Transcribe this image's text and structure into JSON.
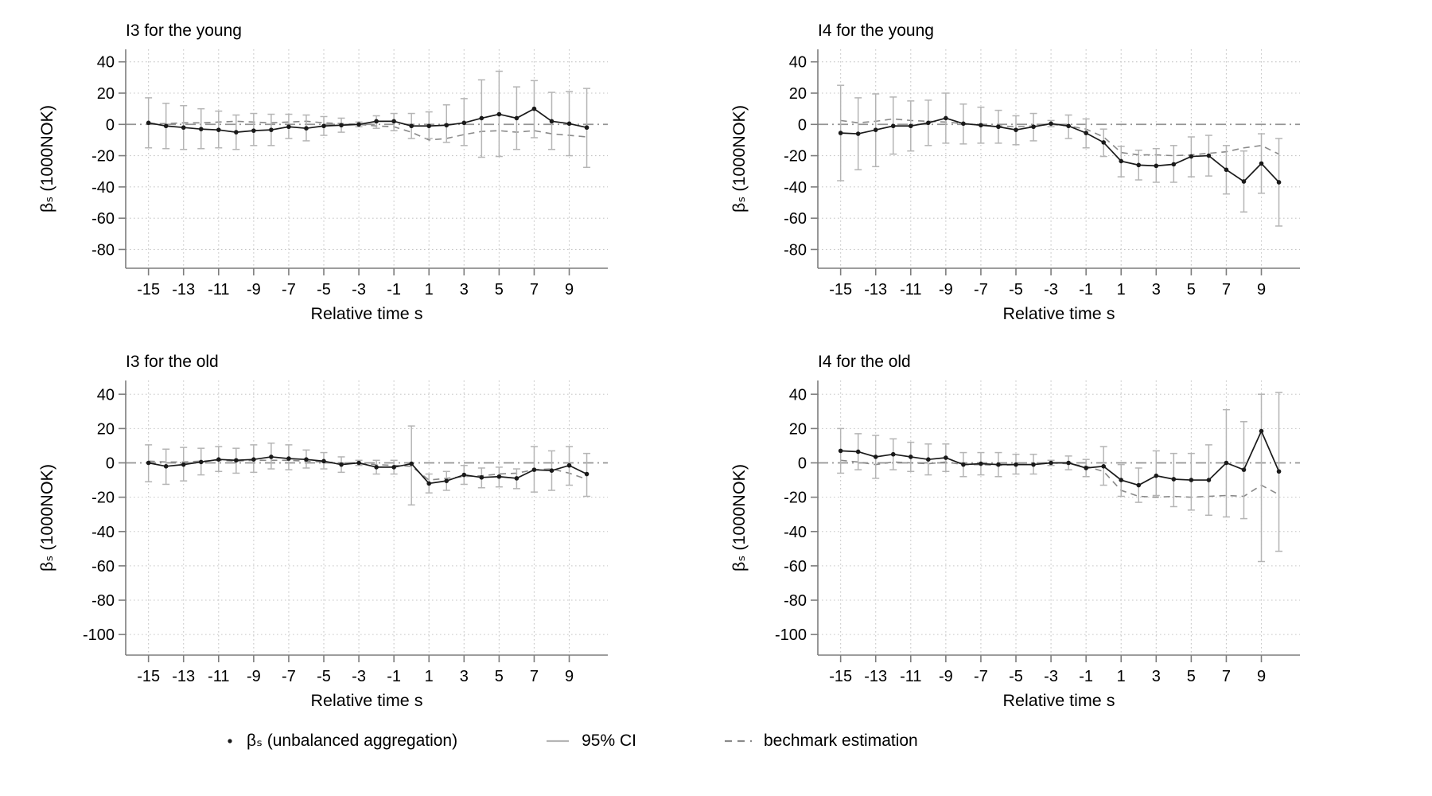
{
  "figure": {
    "xlabel": "Relative time s",
    "ylabel": "βₛ (1000NOK)",
    "legend": [
      {
        "marker": "dot-icon",
        "label": "βₛ (unbalanced aggregation)"
      },
      {
        "marker": "line-icon",
        "label": "95% CI"
      },
      {
        "marker": "dash-icon",
        "label": "bechmark estimation"
      }
    ],
    "colors": {
      "series": "#1a1a1a",
      "ci": "#b5b5b5",
      "benchmark": "#8a8a8a",
      "zero_line": "#959595",
      "grid": "#c6c6c6",
      "spine": "#7d7d7d",
      "text": "#000000",
      "background": "#ffffff"
    }
  },
  "chart_data": [
    {
      "type": "line",
      "title": "I3 for the young",
      "xlabel": "Relative time s",
      "ylabel": "βₛ (1000NOK)",
      "x": [
        -15,
        -14,
        -13,
        -12,
        -11,
        -10,
        -9,
        -8,
        -7,
        -6,
        -5,
        -4,
        -3,
        -2,
        -1,
        0,
        1,
        2,
        3,
        4,
        5,
        6,
        7,
        8,
        9,
        10
      ],
      "xticks": [
        -15,
        -13,
        -11,
        -9,
        -7,
        -5,
        -3,
        -1,
        1,
        3,
        5,
        7,
        9
      ],
      "yticks": [
        40,
        20,
        0,
        -20,
        -40,
        -60,
        -80
      ],
      "ylim": [
        -92,
        48
      ],
      "ref_line_y": 0,
      "legend_position": "bottom",
      "grid": true,
      "series": [
        {
          "name": "beta",
          "values": [
            1,
            -1,
            -2,
            -3,
            -3.5,
            -5,
            -4,
            -3.5,
            -1.5,
            -2.5,
            -1,
            -0.5,
            0,
            2,
            2,
            -1,
            -1,
            -0.5,
            1,
            4,
            6.5,
            4,
            10,
            2,
            0.5,
            -2
          ]
        },
        {
          "name": "ci_high",
          "values": [
            17,
            13.5,
            12,
            10,
            8.5,
            6,
            7,
            6.5,
            6.5,
            6,
            5,
            4,
            1.5,
            5.5,
            7,
            7,
            8,
            12.5,
            16.5,
            28.5,
            34,
            24,
            28,
            20.5,
            21,
            23
          ]
        },
        {
          "name": "ci_low",
          "values": [
            -15,
            -15.5,
            -16,
            -15.5,
            -15,
            -16,
            -13.5,
            -13.5,
            -9,
            -10.5,
            -7,
            -5,
            -1.5,
            -2.5,
            -4,
            -9,
            -9,
            -11.5,
            -13.5,
            -21,
            -20.5,
            -16,
            -8.5,
            -16,
            -20,
            -27.5
          ]
        },
        {
          "name": "benchmark",
          "values": [
            0.5,
            0.5,
            1,
            1,
            1.5,
            2,
            1.5,
            1,
            1.5,
            2,
            1,
            0.5,
            0,
            -1,
            -1.5,
            -5,
            -10,
            -9,
            -6.5,
            -4.5,
            -4,
            -5,
            -4,
            -6,
            -7,
            -8
          ]
        }
      ]
    },
    {
      "type": "line",
      "title": "I4 for the young",
      "xlabel": "Relative time s",
      "ylabel": "βₛ (1000NOK)",
      "x": [
        -15,
        -14,
        -13,
        -12,
        -11,
        -10,
        -9,
        -8,
        -7,
        -6,
        -5,
        -4,
        -3,
        -2,
        -1,
        0,
        1,
        2,
        3,
        4,
        5,
        6,
        7,
        8,
        9,
        10
      ],
      "xticks": [
        -15,
        -13,
        -11,
        -9,
        -7,
        -5,
        -3,
        -1,
        1,
        3,
        5,
        7,
        9
      ],
      "yticks": [
        40,
        20,
        0,
        -20,
        -40,
        -60,
        -80
      ],
      "ylim": [
        -92,
        48
      ],
      "ref_line_y": 0,
      "legend_position": "bottom",
      "grid": true,
      "series": [
        {
          "name": "beta",
          "values": [
            -5.5,
            -6,
            -3.5,
            -1,
            -1,
            1,
            4,
            0.5,
            -0.5,
            -1.5,
            -3.5,
            -1.5,
            0.5,
            -1,
            -5.5,
            -11.5,
            -23.5,
            -26,
            -26.5,
            -25.5,
            -20.5,
            -20,
            -29,
            -36.5,
            -25,
            -37
          ]
        },
        {
          "name": "ci_high",
          "values": [
            25,
            17,
            19.5,
            17.5,
            15,
            15.5,
            20,
            13,
            11,
            9,
            5.5,
            7,
            2.5,
            6,
            3.5,
            -3,
            -14,
            -16.5,
            -15.5,
            -13.5,
            -8,
            -7,
            -13.5,
            -17,
            -6,
            -9
          ]
        },
        {
          "name": "ci_low",
          "values": [
            -36,
            -29,
            -27,
            -19,
            -17,
            -13.5,
            -12,
            -12.5,
            -12,
            -12,
            -13,
            -10.5,
            -1.5,
            -9,
            -15,
            -20.5,
            -33.5,
            -35.5,
            -37,
            -37,
            -33.5,
            -33,
            -44.5,
            -56,
            -44,
            -65
          ]
        },
        {
          "name": "benchmark",
          "values": [
            2.5,
            1,
            2,
            3.5,
            2.5,
            2,
            1.5,
            0.5,
            -0.5,
            -1,
            -1.5,
            -1,
            0,
            -1,
            -3,
            -8,
            -18,
            -19.5,
            -19.5,
            -20,
            -19.5,
            -18.5,
            -17.5,
            -15,
            -13.5,
            -19
          ]
        }
      ]
    },
    {
      "type": "line",
      "title": "I3 for the old",
      "xlabel": "Relative time s",
      "ylabel": "βₛ (1000NOK)",
      "x": [
        -15,
        -14,
        -13,
        -12,
        -11,
        -10,
        -9,
        -8,
        -7,
        -6,
        -5,
        -4,
        -3,
        -2,
        -1,
        0,
        1,
        2,
        3,
        4,
        5,
        6,
        7,
        8,
        9,
        10
      ],
      "xticks": [
        -15,
        -13,
        -11,
        -9,
        -7,
        -5,
        -3,
        -1,
        1,
        3,
        5,
        7,
        9
      ],
      "yticks": [
        40,
        20,
        0,
        -20,
        -40,
        -60,
        -80,
        -100
      ],
      "ylim": [
        -112,
        48
      ],
      "ref_line_y": 0,
      "legend_position": "bottom",
      "grid": true,
      "series": [
        {
          "name": "beta",
          "values": [
            0,
            -2,
            -1,
            0.5,
            2,
            1.5,
            2,
            3.5,
            2.5,
            2,
            1,
            -1,
            0,
            -2.5,
            -2.5,
            -0.5,
            -12,
            -10.5,
            -7,
            -8.5,
            -8,
            -9,
            -4,
            -4.5,
            -1.5,
            -6.5
          ]
        },
        {
          "name": "ci_high",
          "values": [
            10.5,
            8,
            9,
            8.5,
            9.5,
            8.5,
            10.5,
            11.5,
            10.5,
            7.5,
            6,
            3.5,
            1.5,
            1.5,
            1.5,
            21.5,
            -6.5,
            -5,
            -1.5,
            -3,
            -2.5,
            -3.5,
            9.5,
            7,
            9.5,
            5.5
          ]
        },
        {
          "name": "ci_low",
          "values": [
            -11,
            -12.5,
            -10.5,
            -7,
            -5,
            -6,
            -5.5,
            -3.5,
            -4,
            -3,
            -3.5,
            -5.5,
            -1.5,
            -6.5,
            -6.5,
            -24.5,
            -17.5,
            -16,
            -12.5,
            -14.5,
            -14,
            -15,
            -17,
            -16,
            -13,
            -19.5
          ]
        },
        {
          "name": "benchmark",
          "values": [
            1,
            0.5,
            0.5,
            1,
            1.5,
            1,
            1.5,
            1.5,
            1.5,
            1,
            0.5,
            0,
            -0.5,
            -1,
            -1.5,
            -2,
            -10,
            -9,
            -8,
            -7.5,
            -6.5,
            -6,
            -4,
            -3.5,
            -6,
            -9.5
          ]
        }
      ]
    },
    {
      "type": "line",
      "title": "I4 for the old",
      "xlabel": "Relative time s",
      "ylabel": "βₛ (1000NOK)",
      "x": [
        -15,
        -14,
        -13,
        -12,
        -11,
        -10,
        -9,
        -8,
        -7,
        -6,
        -5,
        -4,
        -3,
        -2,
        -1,
        0,
        1,
        2,
        3,
        4,
        5,
        6,
        7,
        8,
        9,
        10
      ],
      "xticks": [
        -15,
        -13,
        -11,
        -9,
        -7,
        -5,
        -3,
        -1,
        1,
        3,
        5,
        7,
        9
      ],
      "yticks": [
        40,
        20,
        0,
        -20,
        -40,
        -60,
        -80,
        -100
      ],
      "ylim": [
        -112,
        48
      ],
      "ref_line_y": 0,
      "legend_position": "bottom",
      "grid": true,
      "series": [
        {
          "name": "beta",
          "values": [
            7,
            6.5,
            3.5,
            5,
            3.5,
            2,
            3,
            -1,
            -0.5,
            -1,
            -1,
            -1,
            0,
            0,
            -3,
            -2,
            -10,
            -13,
            -7.5,
            -9.5,
            -10,
            -10,
            0,
            -4,
            18.5,
            -5
          ]
        },
        {
          "name": "ci_high",
          "values": [
            20,
            17,
            16,
            14,
            12,
            11,
            11,
            6,
            6,
            6,
            5,
            5,
            1.5,
            4,
            2,
            9.5,
            -1,
            -3,
            7,
            5.5,
            5.5,
            10.5,
            31,
            24,
            40,
            41
          ]
        },
        {
          "name": "ci_low",
          "values": [
            -6,
            -4,
            -9,
            -4,
            -5,
            -7,
            -5,
            -8,
            -7,
            -8,
            -6.5,
            -6.5,
            -1.5,
            -4,
            -8,
            -13,
            -19.5,
            -23,
            -19,
            -25.5,
            -27.5,
            -30.5,
            -31.5,
            -32.5,
            -57.5,
            -51.5
          ]
        },
        {
          "name": "benchmark",
          "values": [
            1.5,
            0.5,
            -1,
            0.5,
            0,
            -0.5,
            0.5,
            -1,
            -1,
            -1.5,
            -1,
            -1,
            0,
            -0.5,
            -2,
            -5,
            -16,
            -19.5,
            -20,
            -19.5,
            -20,
            -19.5,
            -19,
            -19.5,
            -13,
            -18.5
          ]
        }
      ]
    }
  ]
}
